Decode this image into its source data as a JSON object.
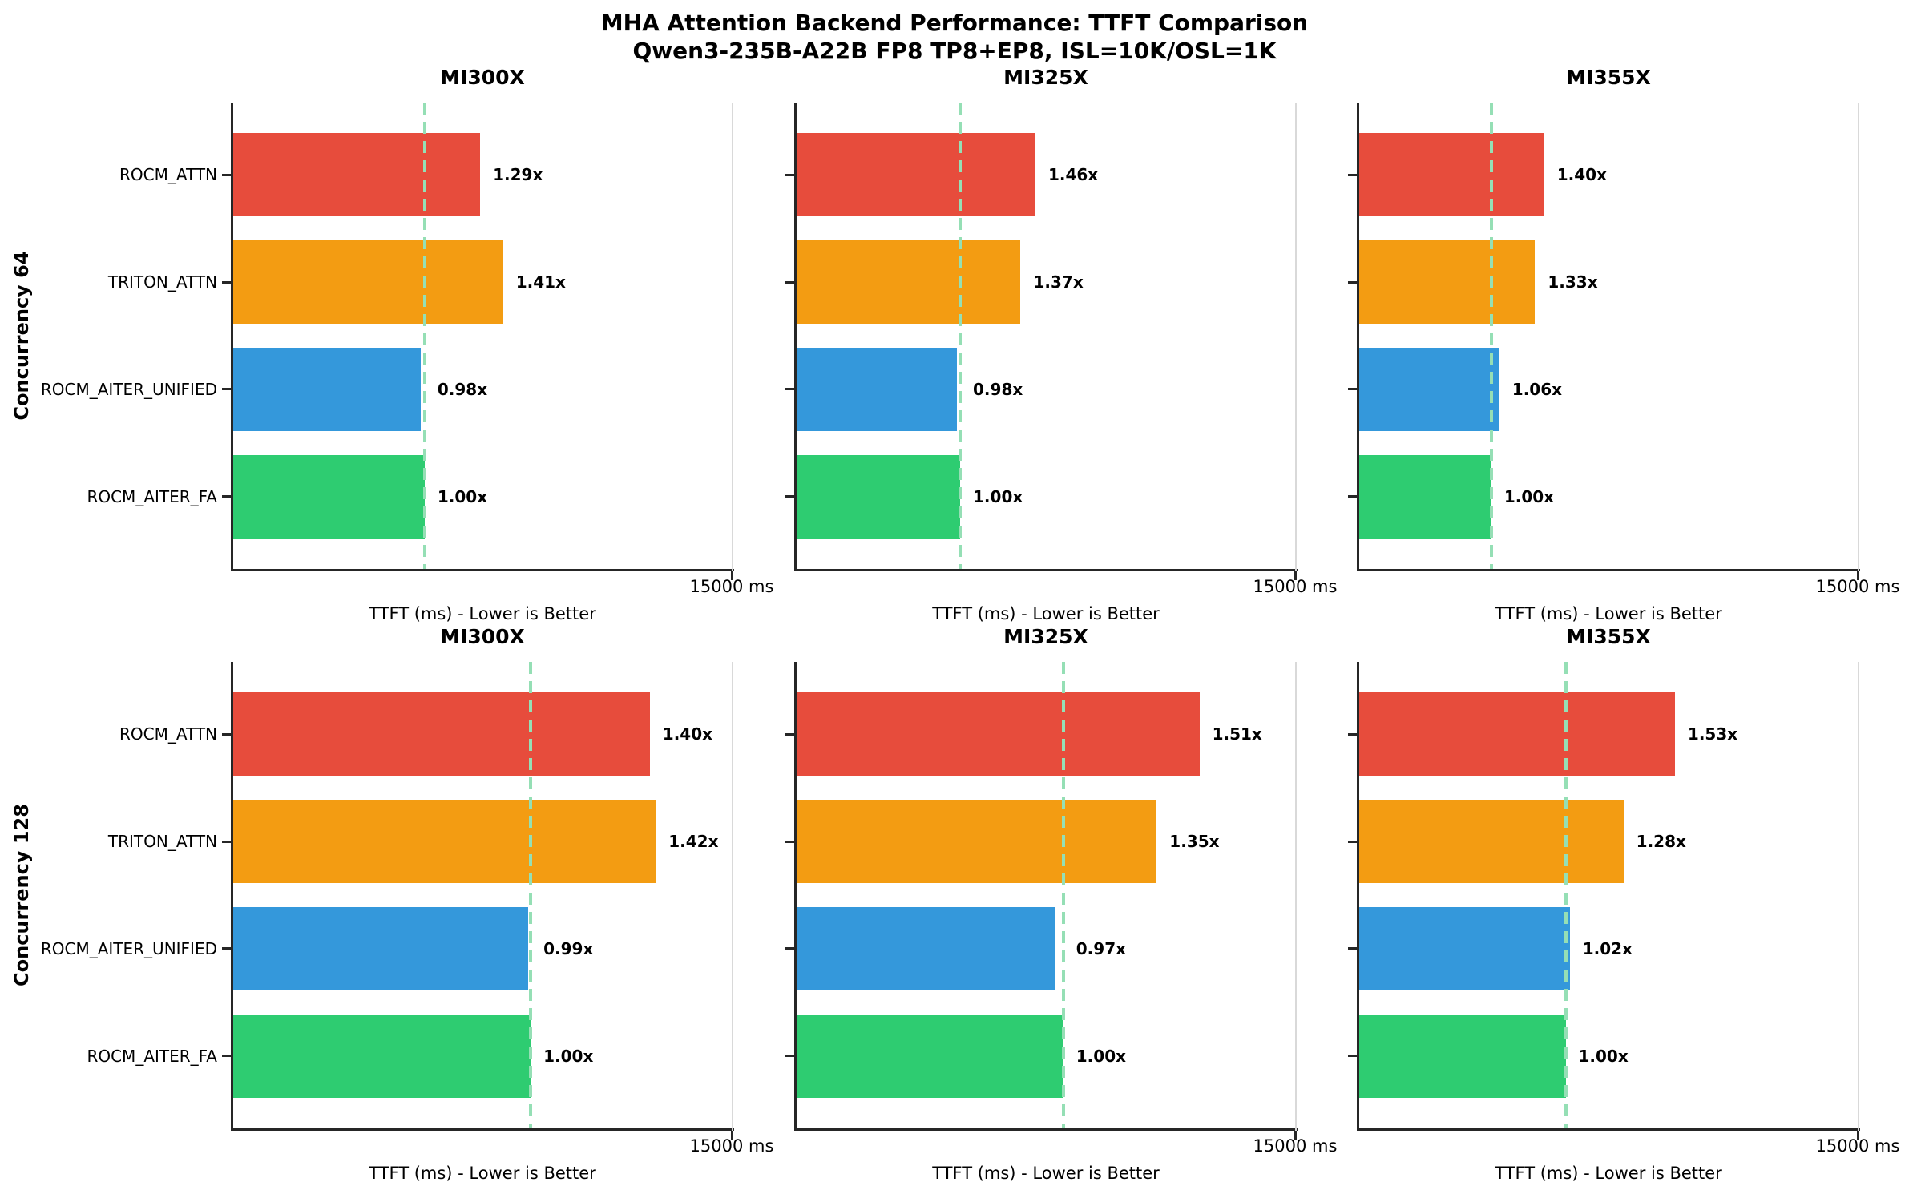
{
  "figure": {
    "title": "MHA Attention Backend Performance: TTFT Comparison",
    "subtitle": "Qwen3-235B-A22B FP8 TP8+EP8, ISL=10K/OSL=1K"
  },
  "chart_data": {
    "type": "bar",
    "orientation": "horizontal",
    "grid": {
      "rows": 2,
      "cols": 3
    },
    "title": "MHA Attention Backend Performance: TTFT Comparison",
    "subtitle": "Qwen3-235B-A22B FP8 TP8+EP8, ISL=10K/OSL=1K",
    "row_labels": [
      "Concurrency 64",
      "Concurrency 128"
    ],
    "col_titles": [
      "MI300X",
      "MI325X",
      "MI355X"
    ],
    "categories": [
      "ROCM_ATTN",
      "TRITON_ATTN",
      "ROCM_AITER_UNIFIED",
      "ROCM_AITER_FA"
    ],
    "bar_colors": [
      "#e74c3c",
      "#f39c12",
      "#3498db",
      "#2ecc71"
    ],
    "baseline_line_color": "#95dfb5",
    "x_axis": {
      "label": "TTFT (ms) - Lower is Better",
      "min_ms": 0,
      "max_ms": 15000,
      "tick_label": "15000 ms"
    },
    "legend": "none",
    "subplots": [
      {
        "row_label": "Concurrency 64",
        "col_title": "MI300X",
        "speedup_labels": [
          "1.29x",
          "1.41x",
          "0.98x",
          "1.00x"
        ],
        "ttft_ms_est": [
          7430,
          8120,
          5645,
          5760
        ],
        "baseline_ms_est": 5760
      },
      {
        "row_label": "Concurrency 64",
        "col_title": "MI325X",
        "speedup_labels": [
          "1.46x",
          "1.37x",
          "0.98x",
          "1.00x"
        ],
        "ttft_ms_est": [
          7185,
          6740,
          4820,
          4920
        ],
        "baseline_ms_est": 4920
      },
      {
        "row_label": "Concurrency 64",
        "col_title": "MI355X",
        "speedup_labels": [
          "1.40x",
          "1.33x",
          "1.06x",
          "1.00x"
        ],
        "ttft_ms_est": [
          5565,
          5290,
          4215,
          3975
        ],
        "baseline_ms_est": 3975
      },
      {
        "row_label": "Concurrency 128",
        "col_title": "MI300X",
        "speedup_labels": [
          "1.40x",
          "1.42x",
          "0.99x",
          "1.00x"
        ],
        "ttft_ms_est": [
          12535,
          12715,
          8865,
          8950
        ],
        "baseline_ms_est": 8950
      },
      {
        "row_label": "Concurrency 128",
        "col_title": "MI325X",
        "speedup_labels": [
          "1.51x",
          "1.35x",
          "0.97x",
          "1.00x"
        ],
        "ttft_ms_est": [
          12120,
          10835,
          7785,
          8025
        ],
        "baseline_ms_est": 8025
      },
      {
        "row_label": "Concurrency 128",
        "col_title": "MI355X",
        "speedup_labels": [
          "1.53x",
          "1.28x",
          "1.02x",
          "1.00x"
        ],
        "ttft_ms_est": [
          9500,
          7950,
          6335,
          6210
        ],
        "baseline_ms_est": 6210
      }
    ]
  }
}
